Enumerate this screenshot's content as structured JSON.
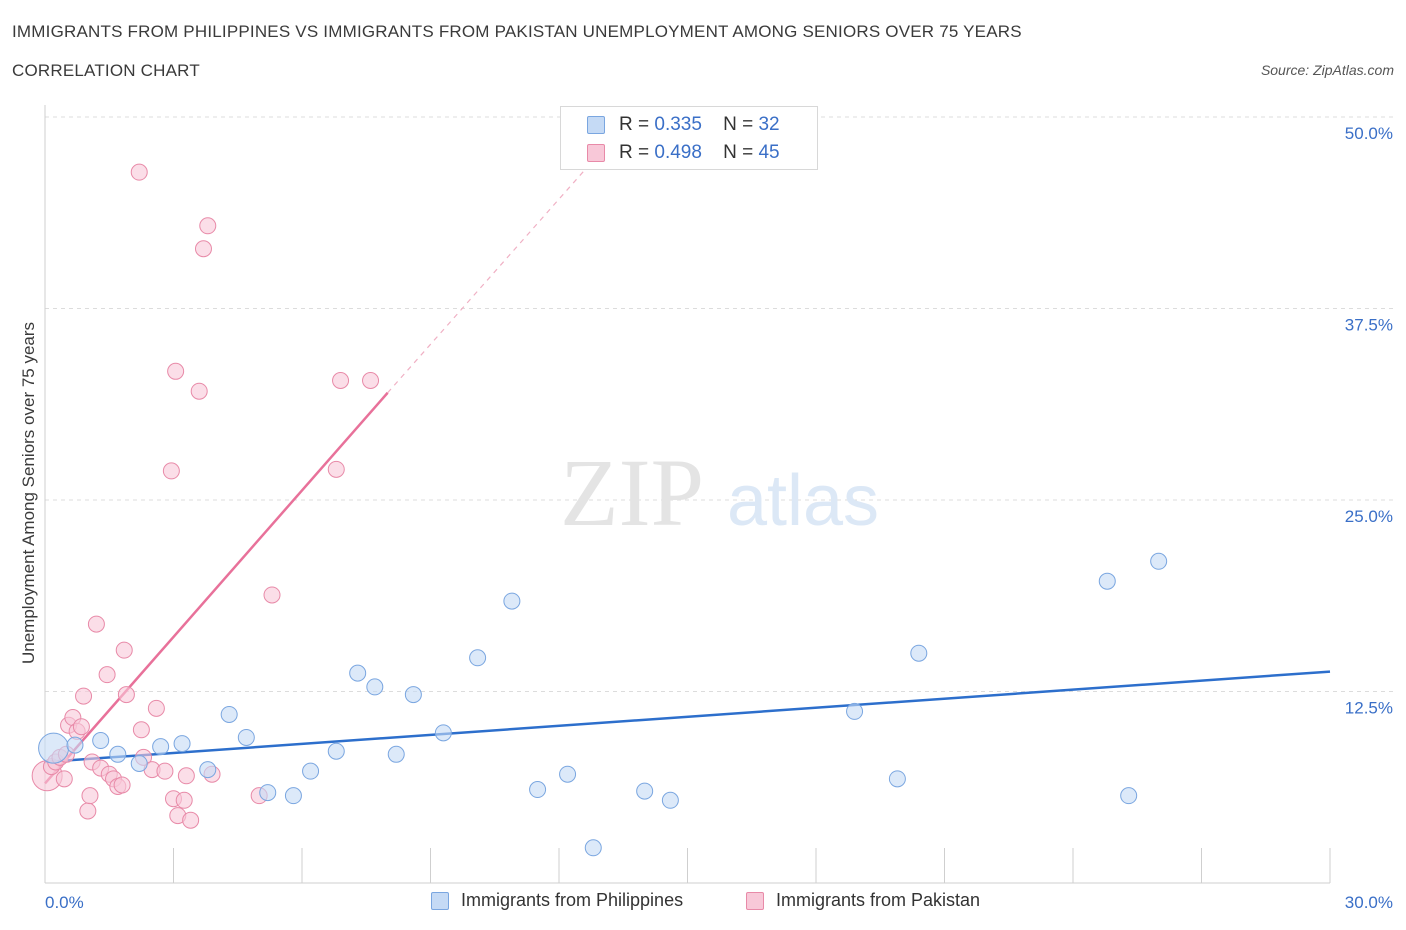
{
  "title": "IMMIGRANTS FROM PHILIPPINES VS IMMIGRANTS FROM PAKISTAN UNEMPLOYMENT AMONG SENIORS OVER 75 YEARS",
  "subtitle": "CORRELATION CHART",
  "source": "Source: ZipAtlas.com",
  "watermark": {
    "zip": "ZIP",
    "atlas": "atlas"
  },
  "legend": {
    "rows": [
      {
        "r_label": "R =",
        "r_value": "0.335",
        "n_label": "N =",
        "n_value": "32",
        "color": "#a8c8f0"
      },
      {
        "r_label": "R =",
        "r_value": "0.498",
        "n_label": "N =",
        "n_value": "45",
        "color": "#f5b3c8"
      }
    ]
  },
  "bottom_legend": {
    "items": [
      {
        "label": "Immigrants from Philippines",
        "color": "#a8c8f0"
      },
      {
        "label": "Immigrants from Pakistan",
        "color": "#f5b3c8"
      }
    ]
  },
  "colors": {
    "philippines_fill": "#c5daf5",
    "philippines_stroke": "#7aa6e0",
    "philippines_line": "#2d6fcc",
    "pakistan_fill": "#f8c8d8",
    "pakistan_stroke": "#e88aa8",
    "pakistan_line": "#e8719a",
    "tick_label": "#3a6fc7",
    "grid": "#dcdcdc"
  },
  "chart_data": {
    "type": "scatter",
    "title": "IMMIGRANTS FROM PHILIPPINES VS IMMIGRANTS FROM PAKISTAN UNEMPLOYMENT AMONG SENIORS OVER 75 YEARS",
    "xlabel": "",
    "ylabel": "Unemployment Among Seniors over 75 years",
    "xlim": [
      0,
      30
    ],
    "ylim": [
      0,
      50
    ],
    "x_tick_labels": [
      {
        "value": 0,
        "label": "0.0%"
      },
      {
        "value": 30,
        "label": "30.0%"
      }
    ],
    "y_tick_labels": [
      {
        "value": 12.5,
        "label": "12.5%"
      },
      {
        "value": 25,
        "label": "25.0%"
      },
      {
        "value": 37.5,
        "label": "37.5%"
      },
      {
        "value": 50,
        "label": "50.0%"
      }
    ],
    "grid": true,
    "legend_position": "top-center",
    "series": [
      {
        "name": "Immigrants from Philippines",
        "R": 0.335,
        "N": 32,
        "trend": {
          "x": [
            0,
            30
          ],
          "y": [
            7.9,
            13.8
          ]
        },
        "points": [
          {
            "x": 0.2,
            "y": 8.8,
            "size": "large"
          },
          {
            "x": 0.7,
            "y": 9.0
          },
          {
            "x": 1.3,
            "y": 9.3
          },
          {
            "x": 1.7,
            "y": 8.4
          },
          {
            "x": 2.2,
            "y": 7.8
          },
          {
            "x": 2.7,
            "y": 8.9
          },
          {
            "x": 3.2,
            "y": 9.1
          },
          {
            "x": 3.8,
            "y": 7.4
          },
          {
            "x": 4.3,
            "y": 11.0
          },
          {
            "x": 4.7,
            "y": 9.5
          },
          {
            "x": 5.2,
            "y": 5.9
          },
          {
            "x": 5.8,
            "y": 5.7
          },
          {
            "x": 6.2,
            "y": 7.3
          },
          {
            "x": 6.8,
            "y": 8.6
          },
          {
            "x": 7.3,
            "y": 13.7
          },
          {
            "x": 7.7,
            "y": 12.8
          },
          {
            "x": 8.2,
            "y": 8.4
          },
          {
            "x": 8.6,
            "y": 12.3
          },
          {
            "x": 9.3,
            "y": 9.8
          },
          {
            "x": 10.1,
            "y": 14.7
          },
          {
            "x": 10.9,
            "y": 18.4
          },
          {
            "x": 11.5,
            "y": 6.1
          },
          {
            "x": 12.2,
            "y": 7.1
          },
          {
            "x": 12.8,
            "y": 2.3
          },
          {
            "x": 14.0,
            "y": 6.0
          },
          {
            "x": 14.6,
            "y": 5.4
          },
          {
            "x": 18.9,
            "y": 11.2
          },
          {
            "x": 19.9,
            "y": 6.8
          },
          {
            "x": 20.4,
            "y": 15.0
          },
          {
            "x": 24.8,
            "y": 19.7
          },
          {
            "x": 25.3,
            "y": 5.7
          },
          {
            "x": 26.0,
            "y": 21.0
          }
        ]
      },
      {
        "name": "Immigrants from Pakistan",
        "R": 0.498,
        "N": 45,
        "trend": {
          "x": [
            0,
            8.0
          ],
          "y": [
            6.5,
            32.0
          ]
        },
        "trend_extension": {
          "x": [
            8.0,
            13.0
          ],
          "y": [
            32.0,
            47.8
          ]
        },
        "points": [
          {
            "x": 0.05,
            "y": 7.0,
            "size": "large"
          },
          {
            "x": 0.15,
            "y": 7.6
          },
          {
            "x": 0.25,
            "y": 7.9
          },
          {
            "x": 0.35,
            "y": 8.2
          },
          {
            "x": 0.45,
            "y": 6.8
          },
          {
            "x": 0.55,
            "y": 10.3
          },
          {
            "x": 0.65,
            "y": 10.8
          },
          {
            "x": 0.75,
            "y": 9.9
          },
          {
            "x": 0.85,
            "y": 10.2
          },
          {
            "x": 0.9,
            "y": 12.2
          },
          {
            "x": 1.0,
            "y": 4.7
          },
          {
            "x": 1.05,
            "y": 5.7
          },
          {
            "x": 1.1,
            "y": 7.9
          },
          {
            "x": 1.2,
            "y": 16.9
          },
          {
            "x": 1.3,
            "y": 7.5
          },
          {
            "x": 1.45,
            "y": 13.6
          },
          {
            "x": 1.5,
            "y": 7.1
          },
          {
            "x": 1.6,
            "y": 6.8
          },
          {
            "x": 1.7,
            "y": 6.3
          },
          {
            "x": 1.8,
            "y": 6.4
          },
          {
            "x": 1.85,
            "y": 15.2
          },
          {
            "x": 1.9,
            "y": 12.3
          },
          {
            "x": 2.2,
            "y": 46.4
          },
          {
            "x": 2.25,
            "y": 10.0
          },
          {
            "x": 2.3,
            "y": 8.2
          },
          {
            "x": 2.5,
            "y": 7.4
          },
          {
            "x": 2.6,
            "y": 11.4
          },
          {
            "x": 2.8,
            "y": 7.3
          },
          {
            "x": 2.95,
            "y": 26.9
          },
          {
            "x": 3.0,
            "y": 5.5
          },
          {
            "x": 3.05,
            "y": 33.4
          },
          {
            "x": 3.1,
            "y": 4.4
          },
          {
            "x": 3.25,
            "y": 5.4
          },
          {
            "x": 3.3,
            "y": 7.0
          },
          {
            "x": 3.4,
            "y": 4.1
          },
          {
            "x": 3.6,
            "y": 32.1
          },
          {
            "x": 3.7,
            "y": 41.4
          },
          {
            "x": 3.8,
            "y": 42.9
          },
          {
            "x": 3.9,
            "y": 7.1
          },
          {
            "x": 5.0,
            "y": 5.7
          },
          {
            "x": 5.3,
            "y": 18.8
          },
          {
            "x": 6.8,
            "y": 27.0
          },
          {
            "x": 6.9,
            "y": 32.8
          },
          {
            "x": 7.6,
            "y": 32.8
          },
          {
            "x": 0.5,
            "y": 8.4
          }
        ]
      }
    ]
  }
}
